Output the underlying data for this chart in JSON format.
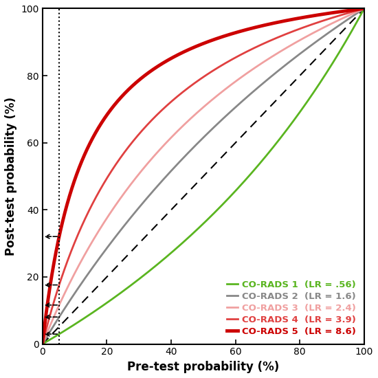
{
  "title": "",
  "xlabel": "Pre-test probability (%)",
  "ylabel": "Post-test probability (%)",
  "xlim": [
    0,
    100
  ],
  "ylim": [
    0,
    100
  ],
  "xticks": [
    0,
    20,
    40,
    60,
    80,
    100
  ],
  "yticks": [
    0,
    20,
    40,
    60,
    80,
    100
  ],
  "pretest_arrow": 5.2,
  "curves": [
    {
      "label": "CO-RADS 1  (LR = .56)",
      "lr": 0.56,
      "color": "#5ab520",
      "linewidth": 2.0
    },
    {
      "label": "CO-RADS 2  (LR = 1.6)",
      "lr": 1.6,
      "color": "#888888",
      "linewidth": 2.0
    },
    {
      "label": "CO-RADS 3  (LR = 2.4)",
      "lr": 2.4,
      "color": "#f0a0a0",
      "linewidth": 2.0
    },
    {
      "label": "CO-RADS 4  (LR = 3.9)",
      "lr": 3.9,
      "color": "#e04040",
      "linewidth": 2.0
    },
    {
      "label": "CO-RADS 5  (LR = 8.6)",
      "lr": 8.6,
      "color": "#cc0000",
      "linewidth": 3.5
    }
  ],
  "diagonal_color": "#000000",
  "diagonal_linestyle": "--",
  "fontsize_labels": 12,
  "fontsize_ticks": 10,
  "fontsize_legend": 9.5,
  "fig_width": 5.5,
  "fig_height": 5.5
}
